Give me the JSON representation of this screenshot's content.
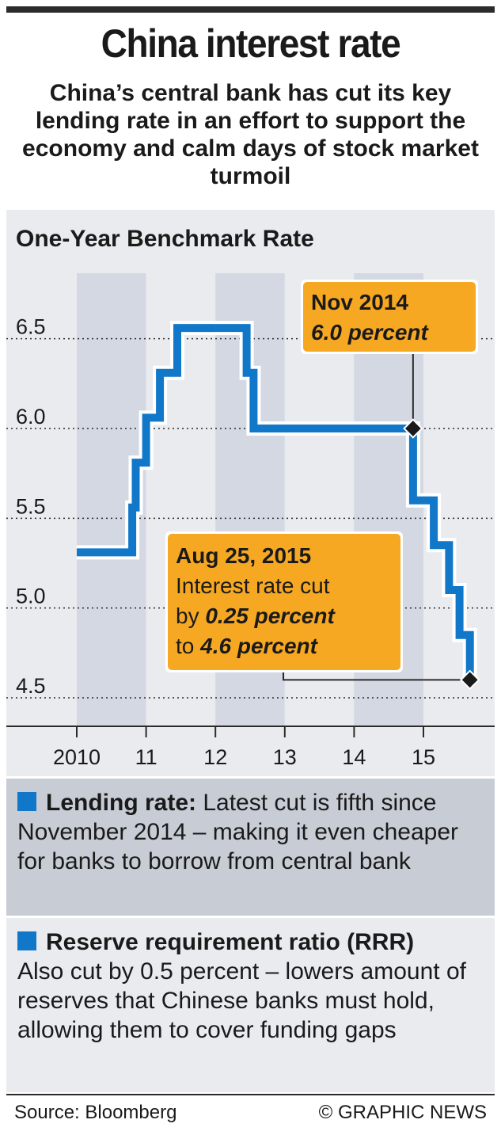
{
  "header": {
    "title": "China interest rate",
    "subtitle": "China’s central bank has cut its key lending rate in an effort to support the economy and calm days of stock market turmoil"
  },
  "chart_data": {
    "type": "line",
    "step": true,
    "title": "One-Year Benchmark Rate",
    "xlabel": "",
    "ylabel": "",
    "ylim": [
      4.35,
      6.75
    ],
    "xlim": [
      2009.6,
      2015.8
    ],
    "yticks": [
      4.5,
      5.0,
      5.5,
      6.0,
      6.5
    ],
    "ytick_labels": [
      "4.5",
      "5.0",
      "5.5",
      "6.0",
      "6.5"
    ],
    "xticks": [
      2010,
      2011,
      2012,
      2013,
      2014,
      2015
    ],
    "xtick_labels": [
      "2010",
      "11",
      "12",
      "13",
      "14",
      "15"
    ],
    "grid": "dotted horizontal",
    "x": [
      2009.96,
      2010.8,
      2011.1,
      2011.25,
      2011.5,
      2012.5,
      2012.6,
      2014.8,
      2015.1,
      2015.35,
      2015.5,
      2015.65
    ],
    "y": [
      5.31,
      5.56,
      5.81,
      6.06,
      6.31,
      6.56,
      6.31,
      6.0,
      5.6,
      5.35,
      5.1,
      4.85
    ],
    "series": [
      {
        "name": "",
        "x": [
          2009.6,
          2010.8,
          2010.8,
          2010.85,
          2010.85,
          2011.0,
          2011.0,
          2011.2,
          2011.2,
          2011.45,
          2011.45,
          2012.45,
          2012.45,
          2012.55,
          2012.55,
          2014.85,
          2014.85,
          2015.15,
          2015.15,
          2015.37,
          2015.37,
          2015.52,
          2015.52,
          2015.67,
          2015.67
        ],
        "values": [
          5.31,
          5.31,
          5.56,
          5.56,
          5.81,
          5.81,
          6.06,
          6.06,
          6.31,
          6.31,
          6.56,
          6.56,
          6.31,
          6.31,
          6.0,
          6.0,
          5.6,
          5.6,
          5.35,
          5.35,
          5.1,
          5.1,
          4.85,
          4.85,
          4.6
        ]
      }
    ],
    "annotations": [
      {
        "id": "nov2014",
        "x": 2014.85,
        "y": 6.0,
        "line1": "Nov 2014",
        "line2": "6.0 percent"
      },
      {
        "id": "aug2015",
        "x": 2015.67,
        "y": 4.6,
        "line1": "Aug 25, 2015",
        "line2": "Interest rate cut",
        "line3a": "by ",
        "line3b": "0.25 percent",
        "line4a": "to ",
        "line4b": "4.6 percent"
      }
    ],
    "colors": {
      "line": "#1177c8",
      "callout": "#f7a823",
      "shade_dark": "#d3d8e2",
      "shade_light": "#e9ebef"
    }
  },
  "panels": {
    "lending": {
      "heading": "Lending rate:",
      "text": " Latest cut is fifth since November 2014 – making it even cheaper for banks to borrow from central bank"
    },
    "rrr": {
      "heading": "Reserve requirement ratio (RRR)",
      "text": "Also cut by 0.5 percent – lowers amount of reserves that Chinese banks must hold, allowing them to cover funding gaps"
    }
  },
  "footer": {
    "source": "Source: Bloomberg",
    "credit": "© GRAPHIC NEWS"
  }
}
